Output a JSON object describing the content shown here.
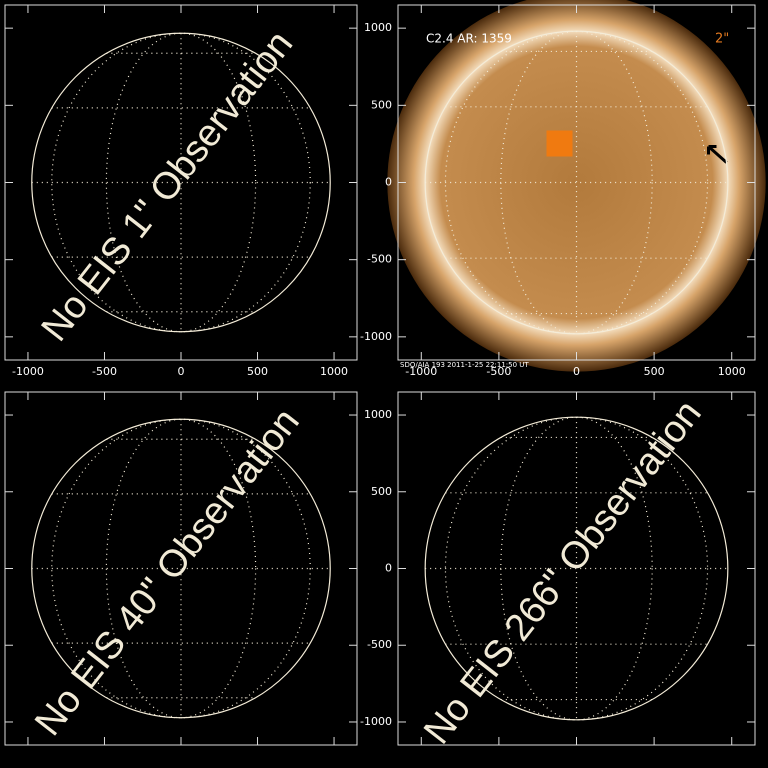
{
  "panels": [
    {
      "overlay": "No EIS 1\" Observation",
      "xlim": [
        -1150,
        1150
      ],
      "ylim": [
        -1150,
        1150
      ],
      "xticks": [
        -1000,
        -500,
        0,
        500,
        1000
      ],
      "yticks": [
        -1000,
        -500,
        0,
        500,
        1000
      ],
      "xlabels": true,
      "ylabels": false
    },
    {
      "flare_label": "C2.4 AR: 1359",
      "scale_label": "2\"",
      "footer": "SDO/AIA 193   2011-1-25 22:11:50 UT",
      "xlim": [
        -1150,
        1150
      ],
      "ylim": [
        -1150,
        1150
      ],
      "xticks": [
        -1000,
        -500,
        0,
        500,
        1000
      ],
      "yticks": [
        -1000,
        -500,
        0,
        500,
        1000
      ],
      "xlabels": true,
      "ylabels": true
    },
    {
      "overlay": "No EIS 40\" Observation",
      "xlim": [
        -1150,
        1150
      ],
      "ylim": [
        -1150,
        1150
      ],
      "xticks": [
        -1000,
        -500,
        0,
        500,
        1000
      ],
      "yticks": [
        -1000,
        -500,
        0,
        500,
        1000
      ],
      "xlabels": false,
      "ylabels": false
    },
    {
      "overlay": "No EIS 266\" Observation",
      "xlim": [
        -1150,
        1150
      ],
      "ylim": [
        -1150,
        1150
      ],
      "xticks": [
        -1000,
        -500,
        0,
        500,
        1000
      ],
      "yticks": [
        -1000,
        -500,
        0,
        500,
        1000
      ],
      "xlabels": false,
      "ylabels": true
    }
  ]
}
